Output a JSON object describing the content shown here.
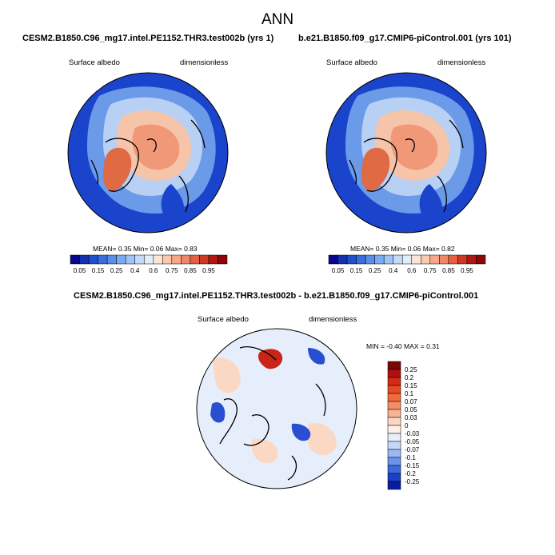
{
  "figure": {
    "title": "ANN"
  },
  "panels": {
    "left": {
      "title": "CESM2.B1850.C96_mg17.intel.PE1152.THR3.test002b (yrs 1)",
      "variable": "Surface albedo",
      "units": "dimensionless",
      "stats": "MEAN=  0.35  Min=  0.06  Max=  0.83"
    },
    "right": {
      "title": "b.e21.B1850.f09_g17.CMIP6-piControl.001 (yrs 101)",
      "variable": "Surface albedo",
      "units": "dimensionless",
      "stats": "MEAN=  0.35  Min=  0.06  Max=  0.82"
    },
    "diff": {
      "title": "CESM2.B1850.C96_mg17.intel.PE1152.THR3.test002b - b.e21.B1850.f09_g17.CMIP6-piControl.001",
      "variable": "Surface albedo",
      "units": "dimensionless",
      "stats": "MIN =  -0.40 MAX =  0.31"
    }
  },
  "colorbar_main": {
    "labels": [
      "0.05",
      "0.15",
      "0.25",
      "0.4",
      "0.6",
      "0.75",
      "0.85",
      "0.95"
    ],
    "colors": [
      "#08088a",
      "#1530b0",
      "#2050d0",
      "#3a6ee0",
      "#5a8ee8",
      "#7aaaf0",
      "#a0c4f5",
      "#c4daf8",
      "#e4eefb",
      "#fbe4d8",
      "#fbc8b0",
      "#f8a888",
      "#f08868",
      "#e46040",
      "#d03824",
      "#b01810",
      "#8a0808"
    ]
  },
  "colorbar_diff": {
    "labels": [
      "0.25",
      "0.2",
      "0.15",
      "0.1",
      "0.07",
      "0.05",
      "0.03",
      "0",
      "-0.03",
      "-0.05",
      "-0.07",
      "-0.1",
      "-0.15",
      "-0.2",
      "-0.25"
    ],
    "colors": [
      "#7a0606",
      "#b01010",
      "#d42a16",
      "#e84a26",
      "#f06a3e",
      "#f48e64",
      "#f8b294",
      "#fbd8c4",
      "#fdf0e8",
      "#e6eefc",
      "#c4d8f8",
      "#9ab8f2",
      "#6c92ea",
      "#3e68dc",
      "#1a40c8",
      "#0a1c9e"
    ]
  },
  "map_colors": {
    "low": "#1a44cc",
    "mid_low": "#6a9ae8",
    "light": "#b8d0f4",
    "warm": "#f6c4a8",
    "warmer": "#f09878",
    "high": "#e06a44",
    "diff_neutral": "#e6eefb",
    "diff_warm": "#fbd8c4",
    "diff_red": "#c82418",
    "diff_blue": "#2a4ed0"
  }
}
